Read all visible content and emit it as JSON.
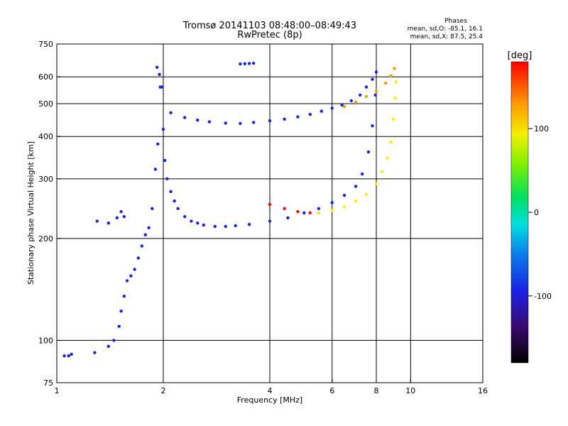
{
  "chart_data": {
    "type": "scatter",
    "title": "Tromsø 20141103 08:48:00–08:49:43",
    "subtitle": "RwPretec (8p)",
    "xlabel": "Frequency [MHz]",
    "ylabel": "Stationary phase Virtual Height [km]",
    "x_scale": "log",
    "y_scale": "log",
    "xlim": [
      1,
      16
    ],
    "ylim": [
      75,
      750
    ],
    "x_ticks": [
      1,
      2,
      4,
      6,
      8,
      10,
      16
    ],
    "y_ticks": [
      75,
      100,
      200,
      300,
      400,
      500,
      600,
      750
    ],
    "grid": true,
    "phases_legend": {
      "title": "Phases",
      "line_o": "mean, sd,O: -85.1, 16.1",
      "line_x": "mean, sd,X:  87.5, 25.4"
    },
    "colorbar": {
      "label": "[deg]",
      "ticks": [
        100,
        0,
        -100
      ],
      "range": [
        -180,
        180
      ]
    },
    "series": [
      {
        "x": [
          1.05,
          1.08,
          1.1,
          1.28,
          1.4,
          1.45,
          1.5,
          1.52,
          1.55,
          1.58,
          1.62,
          1.66,
          1.7,
          1.74,
          1.78,
          1.82,
          1.86,
          1.9,
          1.93,
          1.96
        ],
        "y": [
          90,
          90,
          91,
          92,
          96,
          100,
          110,
          122,
          135,
          150,
          155,
          162,
          175,
          190,
          205,
          215,
          245,
          320,
          380,
          560
        ],
        "phase": -100
      },
      {
        "x": [
          1.3,
          1.4,
          1.48,
          1.52,
          1.55
        ],
        "y": [
          225,
          222,
          230,
          240,
          232
        ],
        "phase": -100
      },
      {
        "x": [
          1.92,
          1.95,
          1.98,
          2.0,
          2.02,
          2.05,
          2.1,
          2.15,
          2.2,
          2.3,
          2.4,
          2.5,
          2.6,
          2.8,
          3.0,
          3.2,
          3.5,
          4.0,
          4.5,
          5.0,
          5.5,
          6.0,
          6.5,
          7.0,
          7.3,
          7.6,
          7.8,
          7.95
        ],
        "y": [
          640,
          610,
          560,
          420,
          340,
          300,
          275,
          258,
          245,
          232,
          225,
          222,
          219,
          217,
          217,
          218,
          220,
          225,
          230,
          238,
          245,
          255,
          268,
          285,
          310,
          360,
          430,
          530
        ],
        "phase": -100
      },
      {
        "x": [
          2.1,
          2.3,
          2.5,
          2.7,
          3.0,
          3.3,
          3.6,
          4.0,
          4.4,
          4.8,
          5.2,
          5.6,
          6.0,
          6.4,
          6.8,
          7.2,
          7.5,
          7.8,
          8.0
        ],
        "y": [
          470,
          455,
          447,
          442,
          438,
          437,
          440,
          445,
          450,
          457,
          465,
          475,
          485,
          495,
          510,
          530,
          560,
          590,
          620
        ],
        "phase": -100
      },
      {
        "x": [
          3.3,
          3.4,
          3.5,
          3.6
        ],
        "y": [
          655,
          656,
          657,
          658
        ],
        "phase": -100
      },
      {
        "x": [
          4.0,
          4.4,
          4.8,
          5.2,
          5.5
        ],
        "y": [
          252,
          245,
          240,
          238,
          238
        ],
        "phase": 150
      },
      {
        "x": [
          5.5,
          6.0,
          6.5,
          7.0,
          7.5,
          8.0,
          8.3,
          8.6,
          8.8,
          8.95,
          9.05,
          9.1
        ],
        "y": [
          238,
          242,
          248,
          258,
          270,
          290,
          315,
          345,
          385,
          450,
          520,
          580
        ],
        "phase": 70
      },
      {
        "x": [
          6.5,
          7.0,
          7.5,
          8.0,
          8.5,
          8.8,
          9.0
        ],
        "y": [
          490,
          505,
          525,
          545,
          575,
          605,
          635
        ],
        "phase": 130
      }
    ]
  }
}
